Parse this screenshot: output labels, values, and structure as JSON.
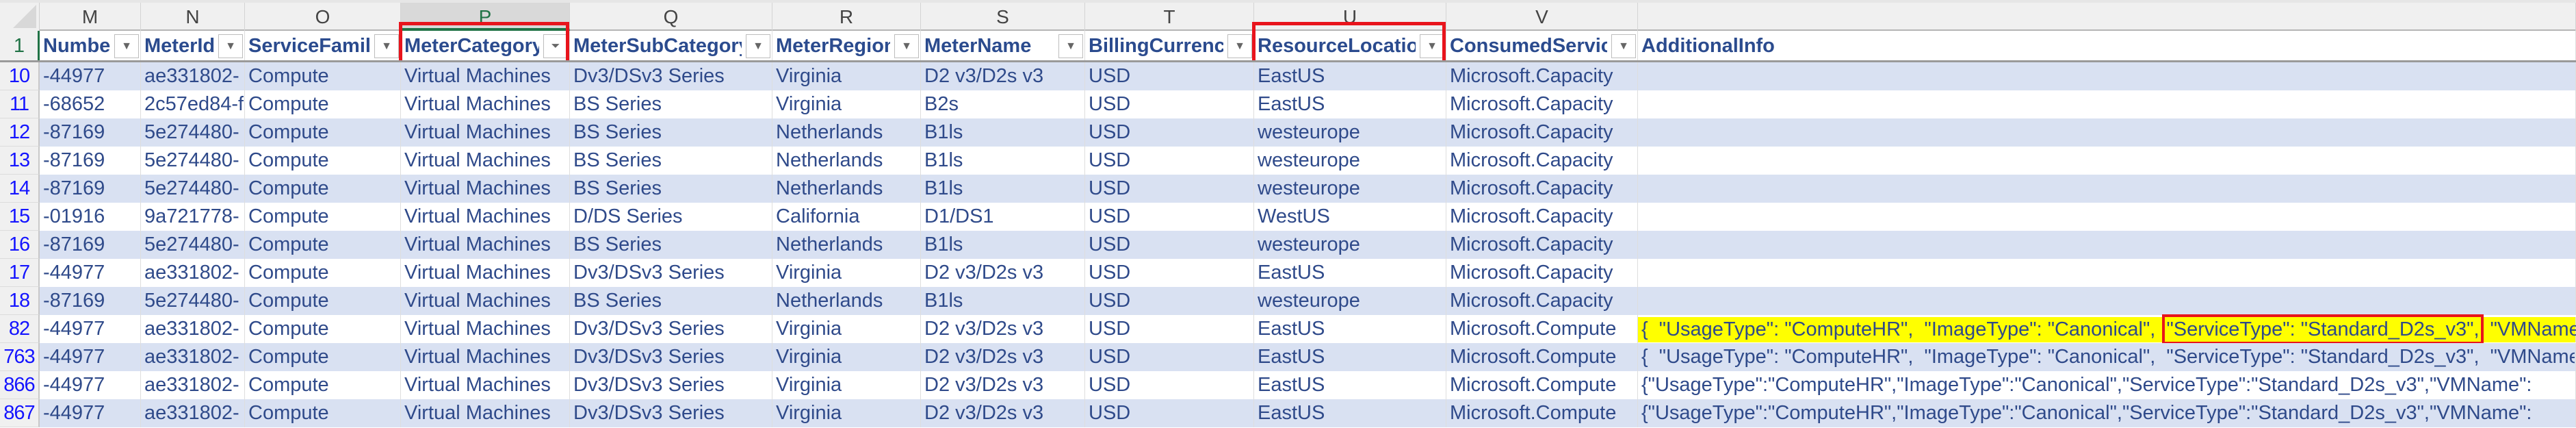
{
  "columns": [
    {
      "letter": "M",
      "header": "Number",
      "filter": "dropdown"
    },
    {
      "letter": "N",
      "header": "MeterId",
      "filter": "dropdown"
    },
    {
      "letter": "O",
      "header": "ServiceFamily",
      "filter": "dropdown"
    },
    {
      "letter": "P",
      "header": "MeterCategory",
      "filter": "funnel",
      "selected": true,
      "highlighted": true
    },
    {
      "letter": "Q",
      "header": "MeterSubCategory",
      "filter": "dropdown"
    },
    {
      "letter": "R",
      "header": "MeterRegion",
      "filter": "dropdown"
    },
    {
      "letter": "S",
      "header": "MeterName",
      "filter": "dropdown"
    },
    {
      "letter": "T",
      "header": "BillingCurrency",
      "filter": "dropdown"
    },
    {
      "letter": "U",
      "header": "ResourceLocation",
      "filter": "dropdown",
      "highlighted": true
    },
    {
      "letter": "V",
      "header": "ConsumedService",
      "filter": "dropdown"
    },
    {
      "letter": "",
      "header": "AdditionalInfo",
      "filter": "none"
    }
  ],
  "header_row_number": "1",
  "rows": [
    {
      "num": "10",
      "cells": [
        "-44977",
        "ae331802-",
        "Compute",
        "Virtual Machines",
        "Dv3/DSv3 Series",
        "Virginia",
        "D2 v3/D2s v3",
        "USD",
        "EastUS",
        "Microsoft.Capacity",
        ""
      ],
      "partial": true
    },
    {
      "num": "11",
      "cells": [
        "-68652",
        "2c57ed84-f",
        "Compute",
        "Virtual Machines",
        "BS Series",
        "Virginia",
        "B2s",
        "USD",
        "EastUS",
        "Microsoft.Capacity",
        ""
      ]
    },
    {
      "num": "12",
      "cells": [
        "-87169",
        "5e274480-",
        "Compute",
        "Virtual Machines",
        "BS Series",
        "Netherlands",
        "B1ls",
        "USD",
        "westeurope",
        "Microsoft.Capacity",
        ""
      ]
    },
    {
      "num": "13",
      "cells": [
        "-87169",
        "5e274480-",
        "Compute",
        "Virtual Machines",
        "BS Series",
        "Netherlands",
        "B1ls",
        "USD",
        "westeurope",
        "Microsoft.Capacity",
        ""
      ]
    },
    {
      "num": "14",
      "cells": [
        "-87169",
        "5e274480-",
        "Compute",
        "Virtual Machines",
        "BS Series",
        "Netherlands",
        "B1ls",
        "USD",
        "westeurope",
        "Microsoft.Capacity",
        ""
      ]
    },
    {
      "num": "15",
      "cells": [
        "-01916",
        "9a721778-",
        "Compute",
        "Virtual Machines",
        "D/DS Series",
        "California",
        "D1/DS1",
        "USD",
        "WestUS",
        "Microsoft.Capacity",
        ""
      ]
    },
    {
      "num": "16",
      "cells": [
        "-87169",
        "5e274480-",
        "Compute",
        "Virtual Machines",
        "BS Series",
        "Netherlands",
        "B1ls",
        "USD",
        "westeurope",
        "Microsoft.Capacity",
        ""
      ]
    },
    {
      "num": "17",
      "cells": [
        "-44977",
        "ae331802-",
        "Compute",
        "Virtual Machines",
        "Dv3/DSv3 Series",
        "Virginia",
        "D2 v3/D2s v3",
        "USD",
        "EastUS",
        "Microsoft.Capacity",
        ""
      ]
    },
    {
      "num": "18",
      "cells": [
        "-87169",
        "5e274480-",
        "Compute",
        "Virtual Machines",
        "BS Series",
        "Netherlands",
        "B1ls",
        "USD",
        "westeurope",
        "Microsoft.Capacity",
        ""
      ]
    },
    {
      "num": "82",
      "cells": [
        "-44977",
        "ae331802-",
        "Compute",
        "Virtual Machines",
        "Dv3/DSv3 Series",
        "Virginia",
        "D2 v3/D2s v3",
        "USD",
        "EastUS",
        "Microsoft.Compute",
        ""
      ],
      "info_parts": [
        "{  \"UsageType\": \"ComputeHR\",  \"ImageType\": \"Canonical\",  ",
        "\"ServiceType\": \"Standard_D2s_v3\",",
        "  \"VMName\":"
      ],
      "info_highlight": true
    },
    {
      "num": "763",
      "cells": [
        "-44977",
        "ae331802-",
        "Compute",
        "Virtual Machines",
        "Dv3/DSv3 Series",
        "Virginia",
        "D2 v3/D2s v3",
        "USD",
        "EastUS",
        "Microsoft.Compute",
        "{  \"UsageType\": \"ComputeHR\",  \"ImageType\": \"Canonical\",  \"ServiceType\": \"Standard_D2s_v3\",  \"VMName\":"
      ]
    },
    {
      "num": "866",
      "cells": [
        "-44977",
        "ae331802-",
        "Compute",
        "Virtual Machines",
        "Dv3/DSv3 Series",
        "Virginia",
        "D2 v3/D2s v3",
        "USD",
        "EastUS",
        "Microsoft.Compute",
        "{\"UsageType\":\"ComputeHR\",\"ImageType\":\"Canonical\",\"ServiceType\":\"Standard_D2s_v3\",\"VMName\":"
      ]
    },
    {
      "num": "867",
      "cells": [
        "-44977",
        "ae331802-",
        "Compute",
        "Virtual Machines",
        "Dv3/DSv3 Series",
        "Virginia",
        "D2 v3/D2s v3",
        "USD",
        "EastUS",
        "Microsoft.Compute",
        "{\"UsageType\":\"ComputeHR\",\"ImageType\":\"Canonical\",\"ServiceType\":\"Standard_D2s_v3\",\"VMName\":"
      ]
    }
  ],
  "colors": {
    "band": "#d9e1f2",
    "highlight": "#ffff00",
    "annotation": "#e8141c",
    "selected": "#217346"
  }
}
